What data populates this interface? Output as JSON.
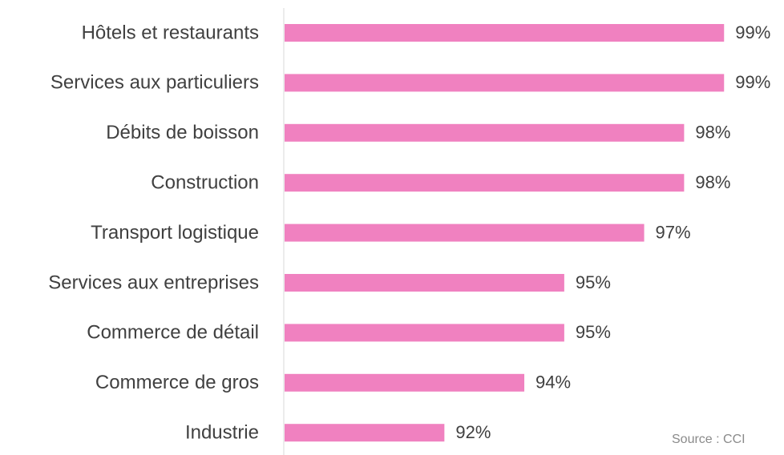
{
  "chart_data": {
    "type": "bar",
    "orientation": "horizontal",
    "categories": [
      "Hôtels et restaurants",
      "Services aux particuliers",
      "Débits de boisson",
      "Construction",
      "Transport logistique",
      "Services aux entreprises",
      "Commerce de détail",
      "Commerce de gros",
      "Industrie"
    ],
    "values": [
      99,
      99,
      98,
      98,
      97,
      95,
      95,
      94,
      92
    ],
    "value_labels": [
      "99%",
      "99%",
      "98%",
      "98%",
      "97%",
      "95%",
      "95%",
      "94%",
      "92%"
    ],
    "color": "#f081c0",
    "xlim": [
      88,
      100.5
    ],
    "source": "Source : CCI"
  }
}
